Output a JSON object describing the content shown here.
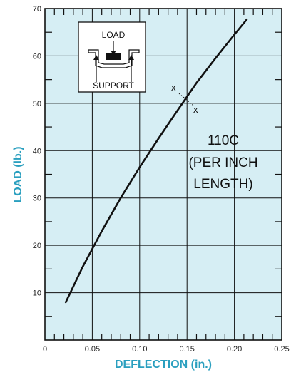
{
  "chart_data": {
    "type": "line",
    "title": "",
    "xlabel": "DEFLECTION (in.)",
    "ylabel": "LOAD (lb.)",
    "xlim": [
      0,
      0.25
    ],
    "ylim": [
      0,
      70
    ],
    "x_ticks": [
      "0",
      "0.05",
      "0.10",
      "0.15",
      "0.20",
      "0.25"
    ],
    "y_ticks": [
      "10",
      "20",
      "30",
      "40",
      "50",
      "60",
      "70"
    ],
    "grid": true,
    "series": [
      {
        "name": "",
        "x": [
          0.022,
          0.04,
          0.06,
          0.08,
          0.1,
          0.12,
          0.14,
          0.16,
          0.18,
          0.2,
          0.213
        ],
        "y": [
          8,
          15.5,
          23,
          30,
          36.5,
          42.6,
          48.5,
          54.3,
          59.5,
          64.5,
          67.7
        ]
      }
    ],
    "annotations": {
      "curve_label": [
        "110C",
        "(PER INCH",
        "LENGTH)"
      ],
      "marker_symbol": "x",
      "inset_load_label": "LOAD",
      "inset_support_label": "SUPPORT"
    },
    "colors": {
      "plot_background": "#d6eef4",
      "axis_title": "#2a9fbf",
      "curve": "#111111",
      "grid": "#111111"
    }
  }
}
